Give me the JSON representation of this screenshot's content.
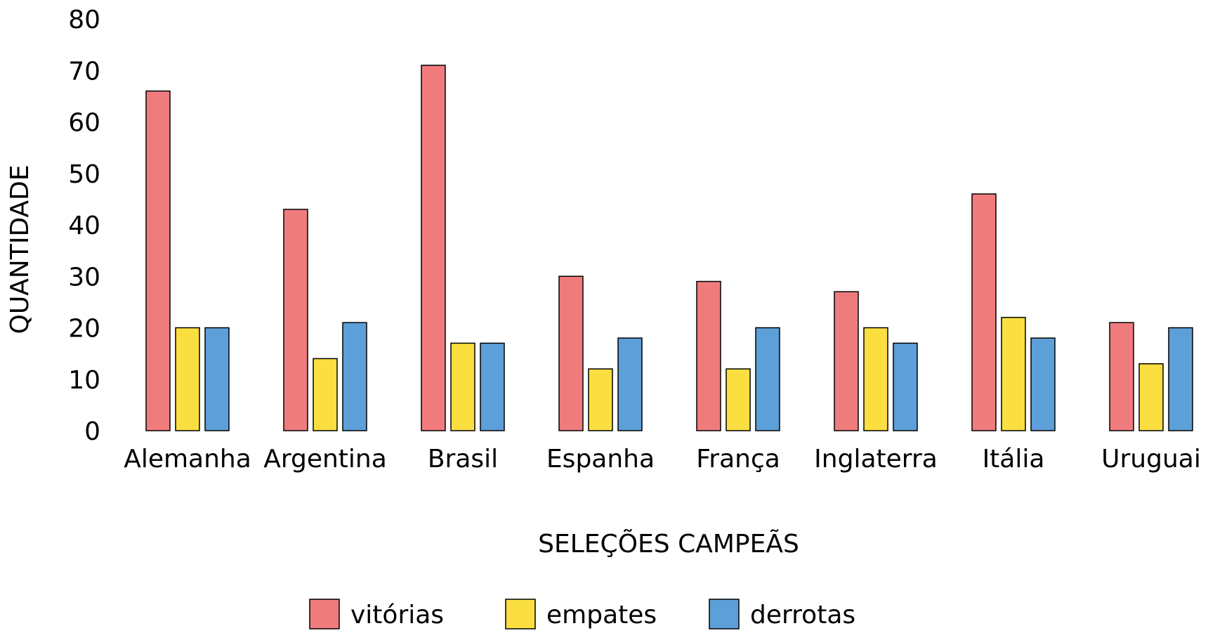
{
  "chart_data": {
    "type": "bar",
    "categories": [
      "Alemanha",
      "Argentina",
      "Brasil",
      "Espanha",
      "França",
      "Inglaterra",
      "Itália",
      "Uruguai"
    ],
    "series": [
      {
        "name": "vitórias",
        "color": "#f07b7d",
        "values": [
          66,
          43,
          71,
          30,
          29,
          27,
          46,
          21
        ]
      },
      {
        "name": "empates",
        "color": "#fbdf40",
        "values": [
          20,
          14,
          17,
          12,
          12,
          20,
          22,
          13
        ]
      },
      {
        "name": "derrotas",
        "color": "#5d9fd8",
        "values": [
          20,
          21,
          17,
          18,
          20,
          17,
          18,
          20
        ]
      }
    ],
    "title": "",
    "xlabel": "SELEÇÕES CAMPEÃS",
    "ylabel": "QUANTIDADE",
    "ylim": [
      0,
      80
    ],
    "yticks": [
      0,
      10,
      20,
      30,
      40,
      50,
      60,
      70,
      80
    ],
    "grid": false,
    "legend_position": "bottom-center"
  }
}
